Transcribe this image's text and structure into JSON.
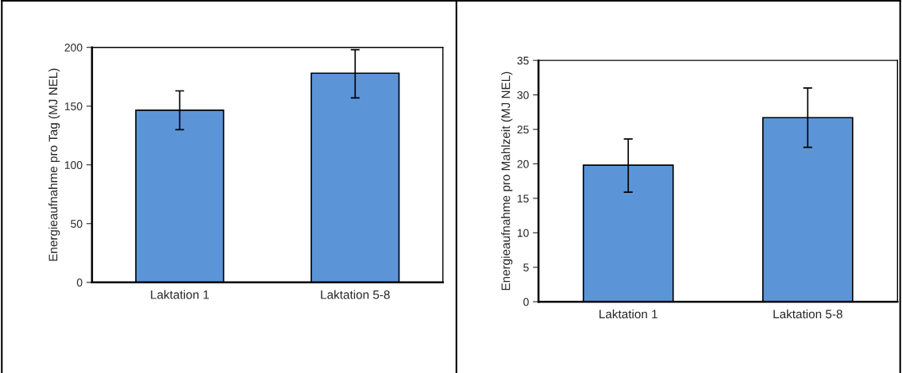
{
  "chart_data": [
    {
      "type": "bar",
      "categories": [
        "Laktation 1",
        "Laktation 5-8"
      ],
      "values": [
        146.5,
        178
      ],
      "errors": [
        [
          130,
          163
        ],
        [
          157,
          198
        ]
      ],
      "color": "#5b95d8",
      "ylabel": "Energieaufnahme pro Tag (MJ NEL)",
      "ylim": [
        0,
        200
      ],
      "yticks": [
        0,
        50,
        100,
        150,
        200
      ],
      "grid": false,
      "legend": false
    },
    {
      "type": "bar",
      "categories": [
        "Laktation 1",
        "Laktation 5-8"
      ],
      "values": [
        19.8,
        26.7
      ],
      "errors": [
        [
          15.9,
          23.6
        ],
        [
          22.4,
          31.0
        ]
      ],
      "color": "#5b95d8",
      "ylabel": "Energieaufnahme pro Mahlzeit (MJ NEL)",
      "ylim": [
        0,
        35
      ],
      "yticks": [
        0,
        5,
        10,
        15,
        20,
        25,
        30,
        35
      ],
      "grid": false,
      "legend": false
    }
  ]
}
